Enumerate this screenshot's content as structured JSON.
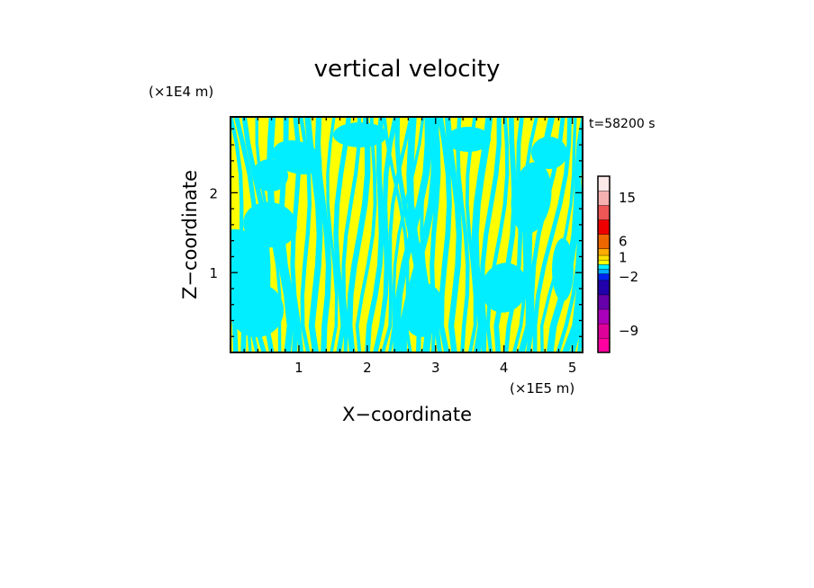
{
  "chart_data": {
    "type": "heatmap",
    "title": "vertical velocity",
    "xlabel": "X−coordinate",
    "ylabel": "Z−coordinate",
    "x_unit_label": "(×1E5 m)",
    "y_unit_label": "(×1E4 m)",
    "time_label": "t=58200 s",
    "xlim": [
      0,
      5.15
    ],
    "ylim": [
      0,
      2.95
    ],
    "x_ticks": [
      1,
      2,
      3,
      4,
      5
    ],
    "y_ticks": [
      1,
      2
    ],
    "grid": false,
    "field_colors": {
      "positive": "#ffff00",
      "negative": "#00eeff"
    },
    "colorbar": {
      "placement": "right",
      "tick_labels": [
        {
          "label": "15",
          "level": 15
        },
        {
          "label": "6",
          "level": 6
        },
        {
          "label": "1",
          "level": 1
        },
        {
          "label": "−2",
          "level": -2
        },
        {
          "label": "−9",
          "level": -9
        }
      ],
      "levels_bottom_to_top": [
        {
          "color": "#ff00a0",
          "level": -12
        },
        {
          "color": "#dd0099",
          "level": -9
        },
        {
          "color": "#aa00bb",
          "level": -6
        },
        {
          "color": "#6600aa",
          "level": -4
        },
        {
          "color": "#2200aa",
          "level": -3
        },
        {
          "color": "#0022ee",
          "level": -2
        },
        {
          "color": "#00aaff",
          "level": -1
        },
        {
          "color": "#00eeff",
          "level": -0.5
        },
        {
          "color": "#ffff00",
          "level": 0.5
        },
        {
          "color": "#ffe000",
          "level": 1
        },
        {
          "color": "#ffaa00",
          "level": 2
        },
        {
          "color": "#ee6600",
          "level": 6
        },
        {
          "color": "#ee0000",
          "level": 9
        },
        {
          "color": "#ee5555",
          "level": 12
        },
        {
          "color": "#f5b0b0",
          "level": 15
        },
        {
          "color": "#fde8e8",
          "level": 18
        }
      ]
    }
  }
}
